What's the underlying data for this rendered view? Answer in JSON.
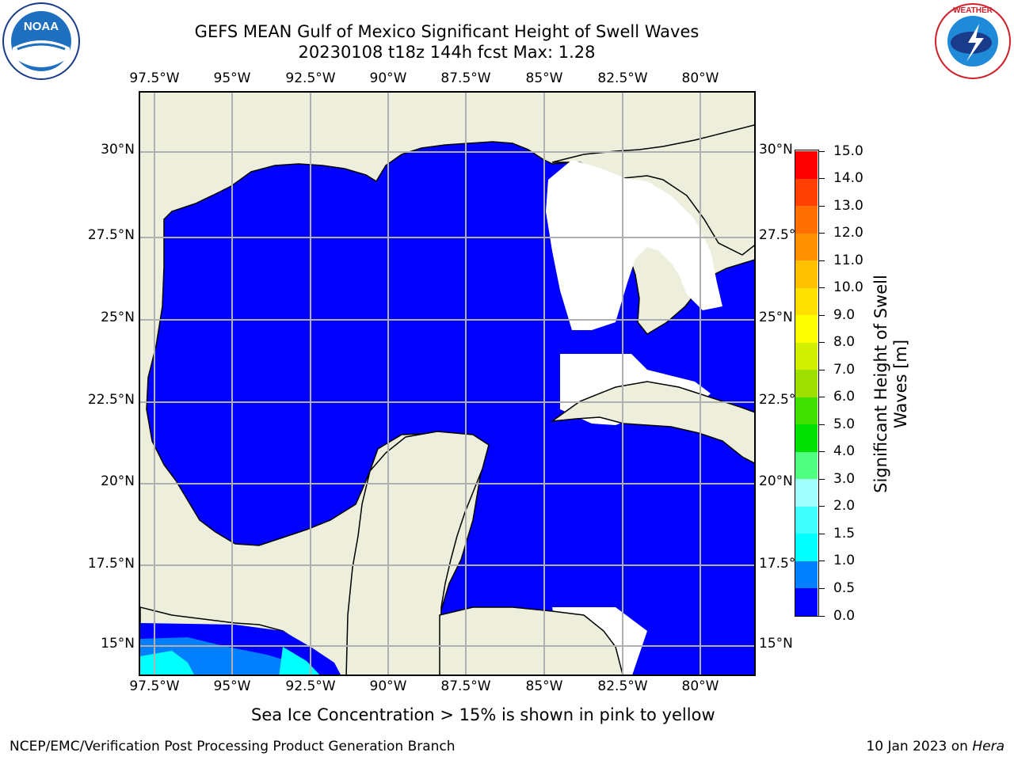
{
  "title_line1": "GEFS MEAN Gulf of Mexico Significant Height of Swell Waves",
  "title_line2": "20230108 t18z 144h fcst   Max: 1.28",
  "lon_labels": [
    "97.5°W",
    "95°W",
    "92.5°W",
    "90°W",
    "87.5°W",
    "85°W",
    "82.5°W",
    "80°W"
  ],
  "lat_labels": [
    "30°N",
    "27.5°N",
    "25°N",
    "22.5°N",
    "20°N",
    "17.5°N",
    "15°N"
  ],
  "colorbar": {
    "label_line1": "Significant Height of Swell",
    "label_line2": "Waves [m]",
    "ticks": [
      "0.0",
      "0.5",
      "1.0",
      "1.5",
      "2.0",
      "3.0",
      "4.0",
      "5.0",
      "6.0",
      "7.0",
      "8.0",
      "9.0",
      "10.0",
      "11.0",
      "12.0",
      "13.0",
      "14.0",
      "15.0"
    ],
    "colors": [
      "#0000ff",
      "#0080ff",
      "#00ffff",
      "#40ffff",
      "#a0ffff",
      "#50ff80",
      "#00e000",
      "#40e000",
      "#a0e000",
      "#d0f000",
      "#ffff00",
      "#ffe000",
      "#ffc000",
      "#ff9000",
      "#ff7000",
      "#ff4000",
      "#ff0000"
    ]
  },
  "colors": {
    "land": "#eeeedd",
    "ocean_low": "#0000ff",
    "ocean_mid": "#0080ff",
    "ocean_high": "#00ffff",
    "grid": "#b0b0b0"
  },
  "footer_note": "Sea Ice Concentration > 15% is shown in pink to yellow",
  "footer_left": "NCEP/EMC/Verification Post Processing Product Generation Branch",
  "footer_right_date": "10 Jan 2023 on ",
  "footer_right_host": "Hera",
  "logos": {
    "noaa": "NOAA",
    "nws": "NATIONAL WEATHER SERVICE"
  }
}
